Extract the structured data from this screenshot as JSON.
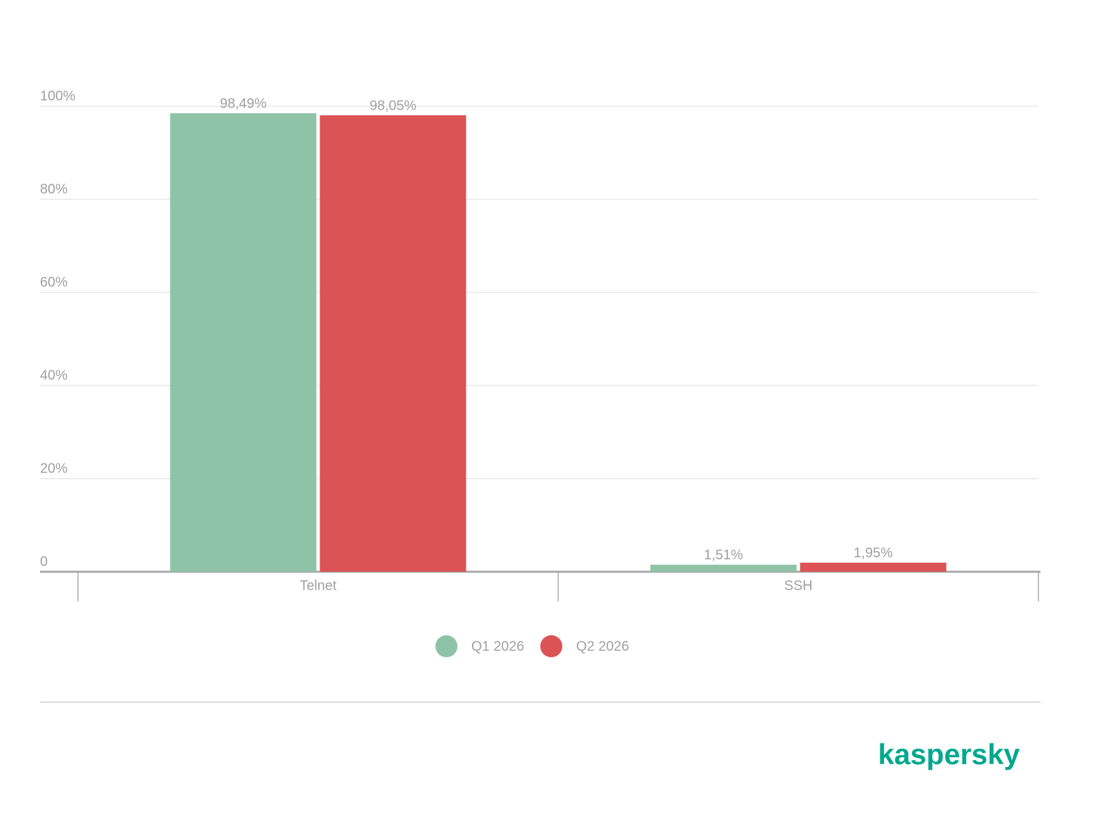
{
  "chart_data": {
    "type": "bar",
    "categories": [
      "Telnet",
      "SSH"
    ],
    "series": [
      {
        "name": "Q1 2026",
        "color": "#8fc3a7",
        "values": [
          98.49,
          1.51
        ],
        "value_labels": [
          "98,49%",
          "1,51%"
        ]
      },
      {
        "name": "Q2 2026",
        "color": "#dc5356",
        "values": [
          98.05,
          1.95
        ],
        "value_labels": [
          "98,05%",
          "1,95%"
        ]
      }
    ],
    "ylim": [
      0,
      100
    ],
    "yticks": [
      0,
      {
        "value": 20,
        "label": "20%"
      },
      {
        "value": 40,
        "label": "40%"
      },
      {
        "value": 60,
        "label": "60%"
      },
      {
        "value": 80,
        "label": "80%"
      },
      {
        "value": 100,
        "label": "100%"
      }
    ],
    "grid": true,
    "logo": "kaspersky"
  }
}
